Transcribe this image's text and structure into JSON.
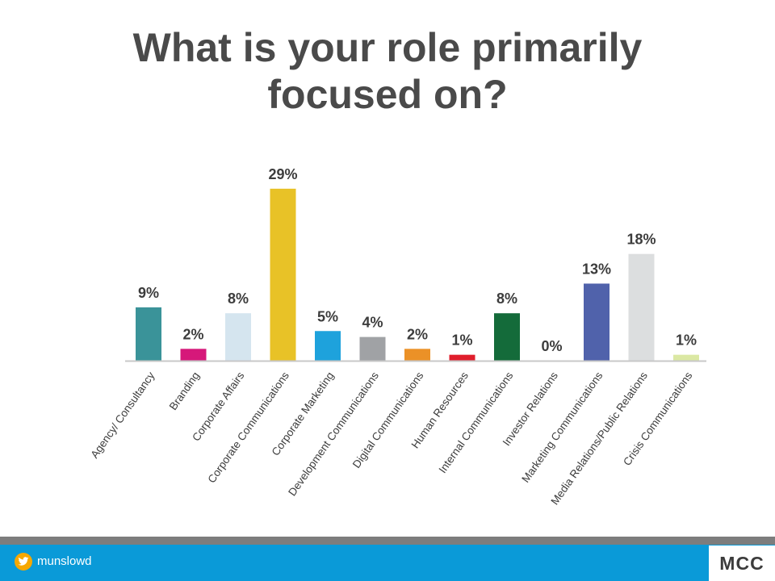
{
  "slide": {
    "title_line1": "What is your role primarily",
    "title_line2": "focused on?"
  },
  "footer": {
    "twitter_handle": "munslowd",
    "logo_text": "MCC",
    "bar_color": "#0a9ad8",
    "stripe_color": "#7d7d7d",
    "badge_color": "#f6a800"
  },
  "chart_data": {
    "type": "bar",
    "title": "What is your role primarily focused on?",
    "categories": [
      "Agency/ Consultancy",
      "Branding",
      "Corporate Affairs",
      "Corporate Communications",
      "Corporate Marketing",
      "Development Communications",
      "Digital Communications",
      "Human Resources",
      "Internal Communications",
      "Investor Relations",
      "Marketing Communications",
      "Media Relations/Public Relations",
      "Crisis Communications"
    ],
    "values": [
      9,
      2,
      8,
      29,
      5,
      4,
      2,
      1,
      8,
      0,
      13,
      18,
      1
    ],
    "data_labels": [
      "9%",
      "2%",
      "8%",
      "29%",
      "5%",
      "4%",
      "2%",
      "1%",
      "8%",
      "0%",
      "13%",
      "18%",
      "1%"
    ],
    "colors": [
      "#3a9399",
      "#d6187a",
      "#d5e5ef",
      "#e8c227",
      "#1ea2dc",
      "#a0a2a5",
      "#eb9127",
      "#e01e2c",
      "#146b3a",
      "#ffffff",
      "#5062ab",
      "#dcdedf",
      "#dbe8a3"
    ],
    "unit": "%",
    "ylim": [
      0,
      30
    ],
    "grid": false,
    "legend": "none"
  }
}
